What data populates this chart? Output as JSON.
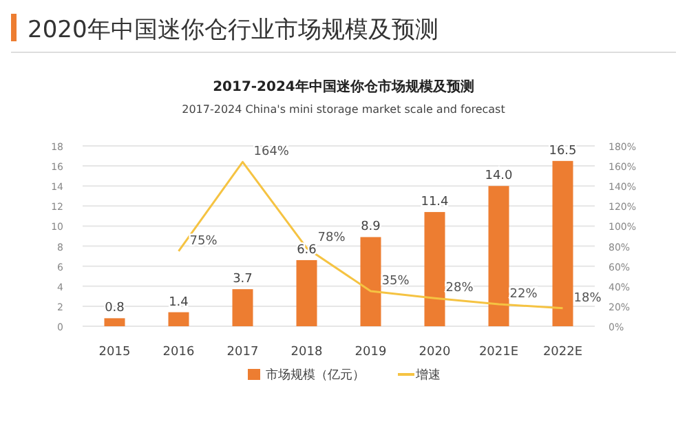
{
  "chart_data": {
    "type": "bar",
    "title": "2017-2024年中国迷你仓市场规模及预测",
    "subtitle": "2017-2024 China's mini storage market scale and forecast",
    "annotations": [
      "2020年中国迷你仓行业市场规模及预测"
    ],
    "categories": [
      "2015",
      "2016",
      "2017",
      "2018",
      "2019",
      "2020",
      "2021E",
      "2022E"
    ],
    "series": [
      {
        "name": "市场规模（亿元）",
        "color": "#ed7d31",
        "values": [
          0.8,
          1.4,
          3.7,
          6.6,
          8.9,
          11.4,
          14.0,
          16.5
        ],
        "value_labels": [
          "0.8",
          "1.4",
          "3.7",
          "6.6",
          "8.9",
          "11.4",
          "14.0",
          "16.5"
        ]
      },
      {
        "name": "增速",
        "type": "line",
        "axis": "y2",
        "color": "#f5c342",
        "values": [
          null,
          75,
          164,
          78,
          35,
          28,
          22,
          18
        ],
        "value_labels": [
          null,
          "75%",
          "164%",
          "78%",
          "35%",
          "28%",
          "22%",
          "18%"
        ]
      }
    ],
    "ylim": [
      0,
      18
    ],
    "yticks": [
      0,
      2,
      4,
      6,
      8,
      10,
      12,
      14,
      16,
      18
    ],
    "y2lim": [
      0,
      180
    ],
    "y2ticks": [
      {
        "value": 0,
        "label": "0%"
      },
      {
        "value": 20,
        "label": "20%"
      },
      {
        "value": 40,
        "label": "40%"
      },
      {
        "value": 60,
        "label": "60%"
      },
      {
        "value": 80,
        "label": "80%"
      },
      {
        "value": 100,
        "label": "100%"
      },
      {
        "value": 120,
        "label": "120%"
      },
      {
        "value": 140,
        "label": "140%"
      },
      {
        "value": 160,
        "label": "160%"
      },
      {
        "value": 180,
        "label": "180%"
      }
    ],
    "grid": "y",
    "legend": "bottom"
  }
}
